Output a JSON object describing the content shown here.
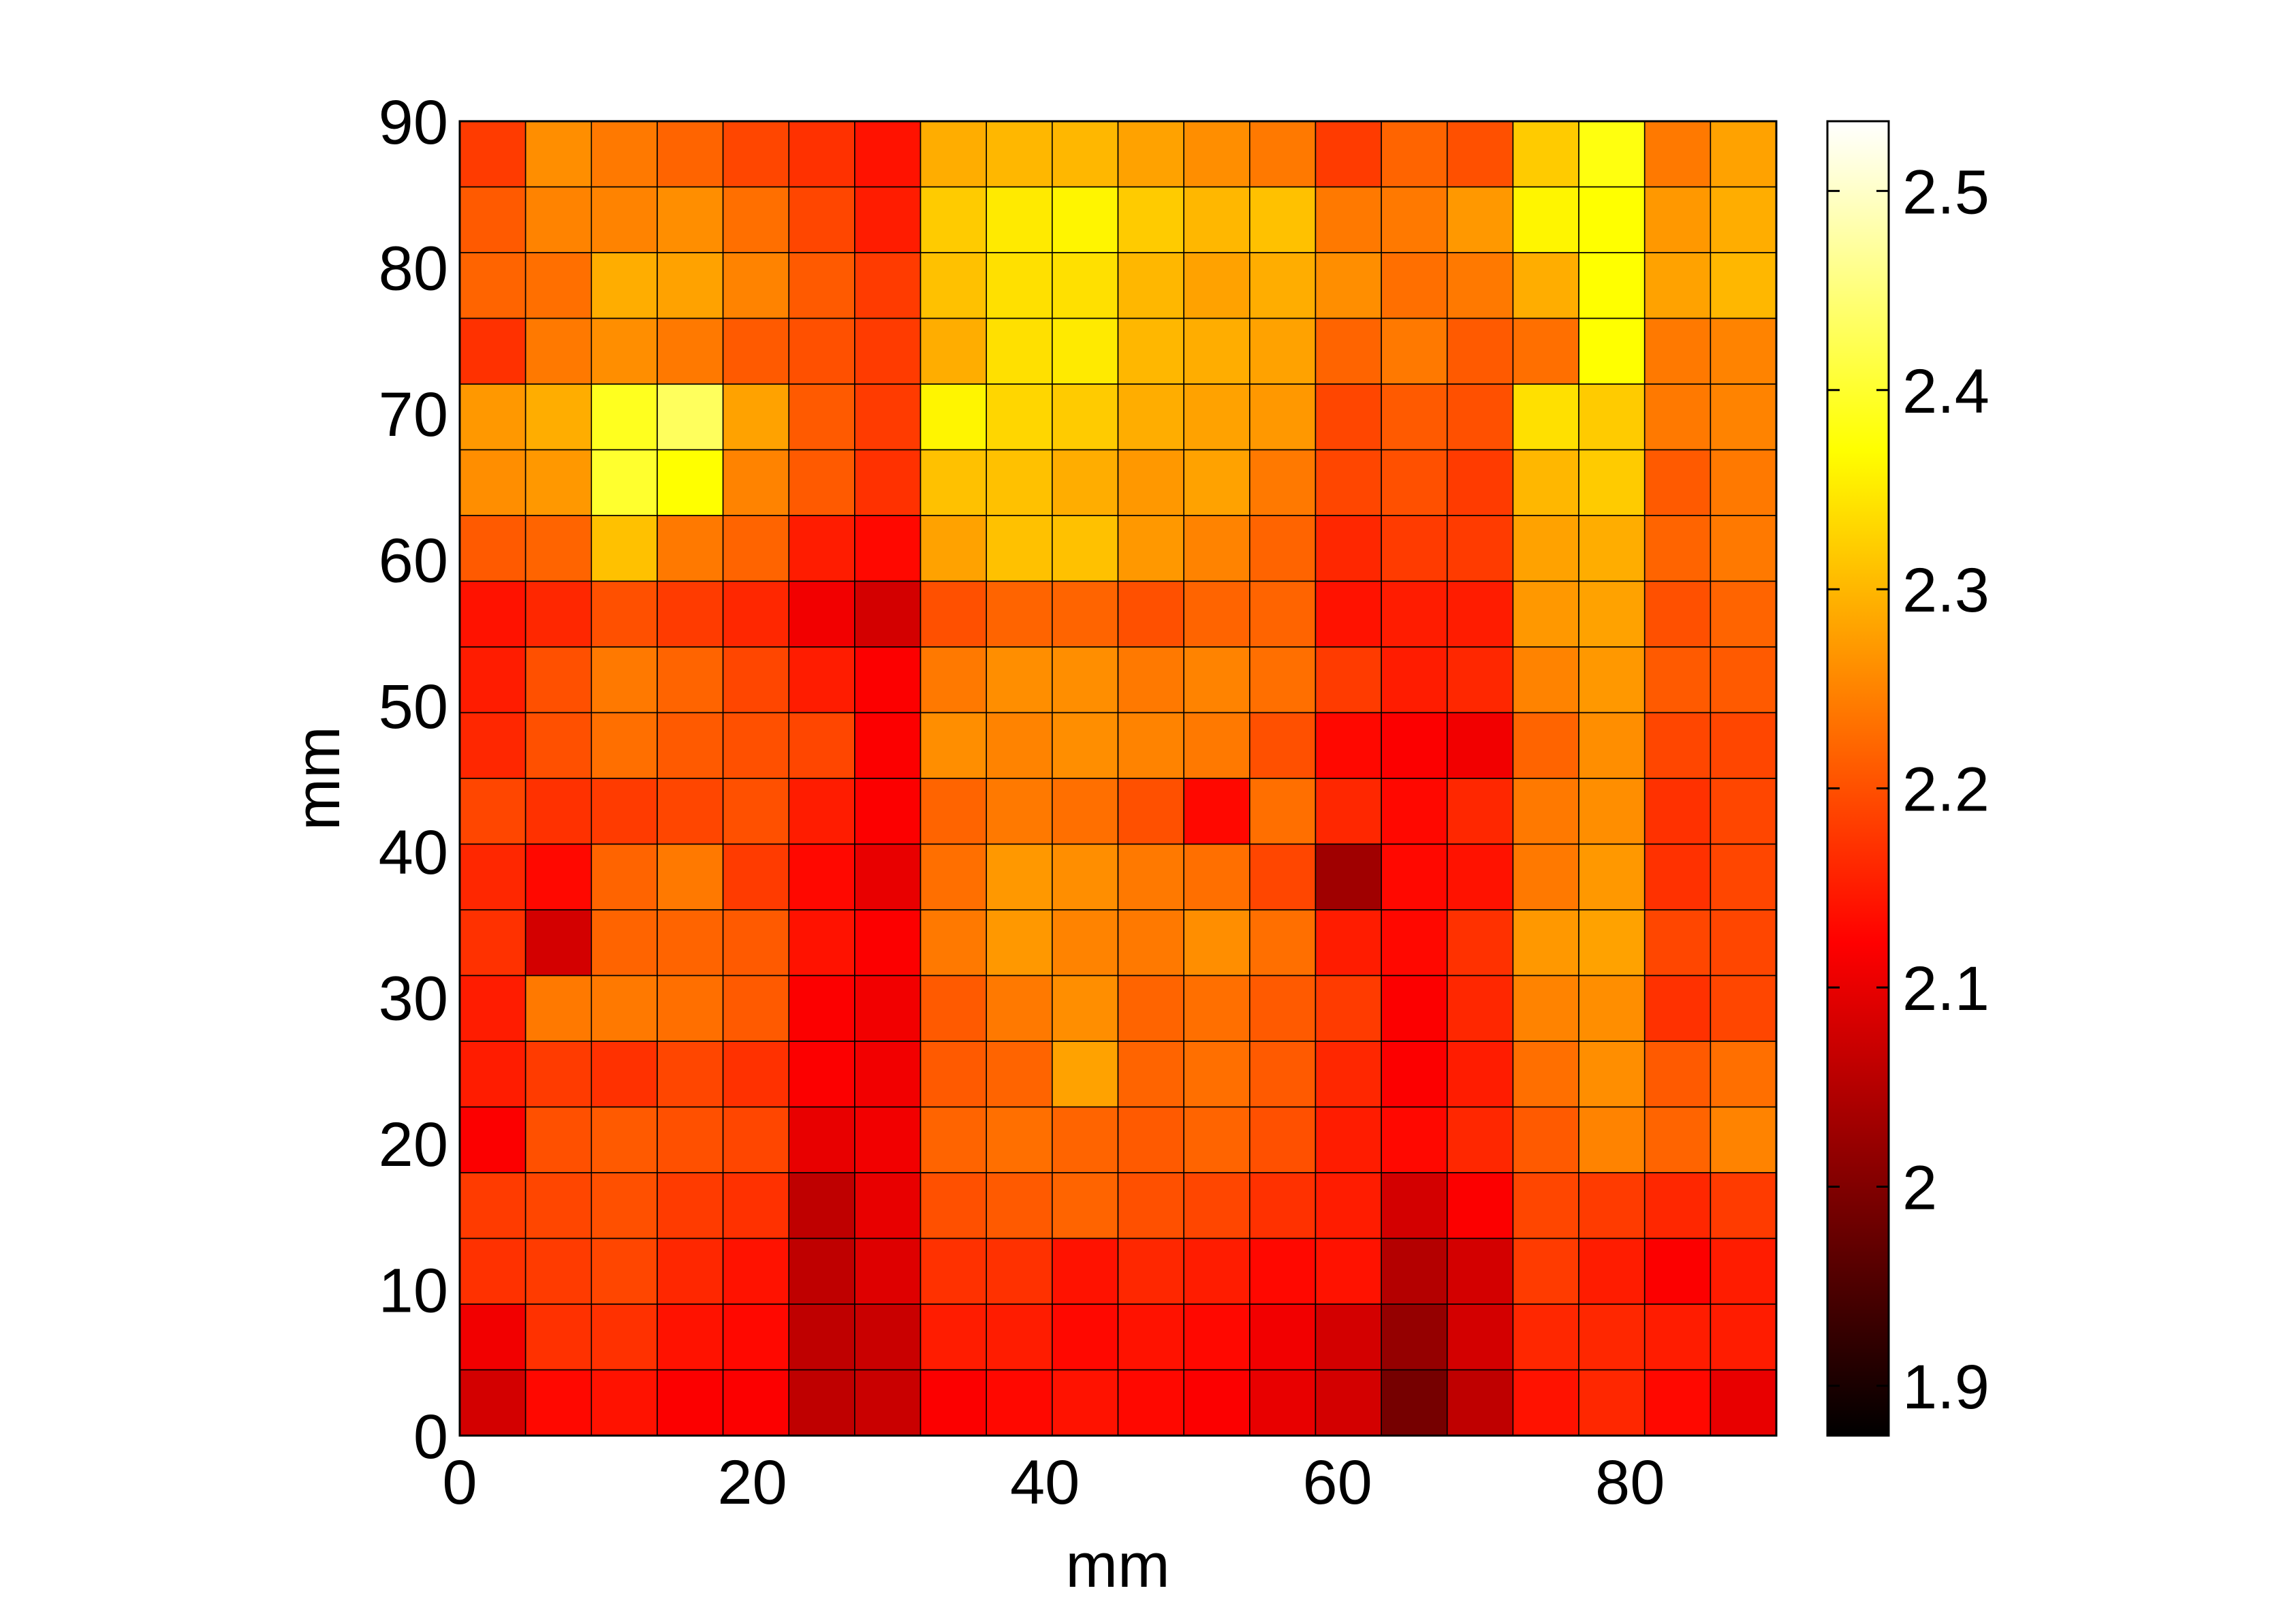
{
  "chart_data": {
    "type": "heatmap",
    "title": "",
    "xlabel": "mm",
    "ylabel": "mm",
    "xlim": [
      0,
      90
    ],
    "ylim": [
      0,
      90
    ],
    "x_ticks": [
      "0",
      "20",
      "40",
      "60",
      "80"
    ],
    "y_ticks": [
      "0",
      "10",
      "20",
      "30",
      "40",
      "50",
      "60",
      "70",
      "80",
      "90"
    ],
    "grid": true,
    "colormap": "hot",
    "clim": [
      1.875,
      2.535
    ],
    "colorbar": {
      "placement": "right",
      "ticks": [
        "1.9",
        "2",
        "2.1",
        "2.2",
        "2.3",
        "2.4",
        "2.5"
      ],
      "tick_values": [
        1.9,
        2.0,
        2.1,
        2.2,
        2.3,
        2.4,
        2.5
      ]
    },
    "cell_size_mm": 4.5,
    "grid_dims": [
      20,
      20
    ],
    "values_rows_top_to_bottom": [
      [
        2.18,
        2.26,
        2.24,
        2.22,
        2.19,
        2.17,
        2.14,
        2.29,
        2.3,
        2.3,
        2.28,
        2.26,
        2.24,
        2.18,
        2.22,
        2.2,
        2.32,
        2.38,
        2.24,
        2.28
      ],
      [
        2.21,
        2.25,
        2.25,
        2.26,
        2.23,
        2.19,
        2.15,
        2.32,
        2.35,
        2.36,
        2.32,
        2.3,
        2.31,
        2.24,
        2.24,
        2.27,
        2.36,
        2.37,
        2.27,
        2.29
      ],
      [
        2.22,
        2.23,
        2.29,
        2.28,
        2.25,
        2.21,
        2.18,
        2.31,
        2.34,
        2.34,
        2.3,
        2.28,
        2.29,
        2.26,
        2.23,
        2.24,
        2.29,
        2.37,
        2.28,
        2.3
      ],
      [
        2.17,
        2.24,
        2.26,
        2.24,
        2.21,
        2.2,
        2.18,
        2.29,
        2.34,
        2.35,
        2.3,
        2.29,
        2.28,
        2.22,
        2.24,
        2.21,
        2.23,
        2.37,
        2.24,
        2.25
      ],
      [
        2.27,
        2.29,
        2.39,
        2.43,
        2.28,
        2.21,
        2.18,
        2.36,
        2.33,
        2.32,
        2.29,
        2.28,
        2.27,
        2.19,
        2.21,
        2.2,
        2.34,
        2.32,
        2.24,
        2.25
      ],
      [
        2.26,
        2.27,
        2.4,
        2.37,
        2.25,
        2.21,
        2.17,
        2.31,
        2.31,
        2.29,
        2.27,
        2.28,
        2.24,
        2.19,
        2.2,
        2.18,
        2.3,
        2.32,
        2.21,
        2.24
      ],
      [
        2.21,
        2.22,
        2.31,
        2.24,
        2.22,
        2.15,
        2.13,
        2.28,
        2.31,
        2.31,
        2.27,
        2.25,
        2.22,
        2.16,
        2.18,
        2.18,
        2.28,
        2.29,
        2.22,
        2.24
      ],
      [
        2.14,
        2.16,
        2.2,
        2.18,
        2.16,
        2.11,
        2.08,
        2.2,
        2.22,
        2.22,
        2.2,
        2.22,
        2.22,
        2.14,
        2.15,
        2.15,
        2.27,
        2.28,
        2.2,
        2.22
      ],
      [
        2.15,
        2.2,
        2.24,
        2.22,
        2.19,
        2.15,
        2.12,
        2.24,
        2.26,
        2.26,
        2.24,
        2.25,
        2.23,
        2.18,
        2.15,
        2.16,
        2.25,
        2.27,
        2.21,
        2.21
      ],
      [
        2.16,
        2.2,
        2.23,
        2.21,
        2.2,
        2.19,
        2.12,
        2.26,
        2.25,
        2.26,
        2.25,
        2.24,
        2.2,
        2.13,
        2.12,
        2.11,
        2.22,
        2.26,
        2.19,
        2.19
      ],
      [
        2.19,
        2.17,
        2.18,
        2.19,
        2.2,
        2.15,
        2.12,
        2.22,
        2.24,
        2.23,
        2.2,
        2.13,
        2.23,
        2.16,
        2.13,
        2.16,
        2.24,
        2.26,
        2.17,
        2.19
      ],
      [
        2.16,
        2.13,
        2.22,
        2.24,
        2.18,
        2.13,
        2.1,
        2.23,
        2.27,
        2.26,
        2.24,
        2.23,
        2.19,
        2.03,
        2.13,
        2.14,
        2.24,
        2.27,
        2.17,
        2.19
      ],
      [
        2.17,
        2.08,
        2.22,
        2.22,
        2.21,
        2.14,
        2.12,
        2.24,
        2.27,
        2.25,
        2.24,
        2.26,
        2.23,
        2.15,
        2.13,
        2.17,
        2.27,
        2.28,
        2.19,
        2.19
      ],
      [
        2.15,
        2.24,
        2.24,
        2.23,
        2.21,
        2.12,
        2.11,
        2.21,
        2.24,
        2.26,
        2.22,
        2.23,
        2.21,
        2.18,
        2.12,
        2.16,
        2.25,
        2.26,
        2.17,
        2.19
      ],
      [
        2.15,
        2.18,
        2.17,
        2.19,
        2.17,
        2.12,
        2.11,
        2.21,
        2.22,
        2.28,
        2.22,
        2.23,
        2.21,
        2.16,
        2.12,
        2.15,
        2.23,
        2.26,
        2.21,
        2.23
      ],
      [
        2.12,
        2.2,
        2.21,
        2.2,
        2.19,
        2.1,
        2.11,
        2.22,
        2.23,
        2.22,
        2.21,
        2.22,
        2.2,
        2.15,
        2.13,
        2.16,
        2.21,
        2.25,
        2.22,
        2.25
      ],
      [
        2.18,
        2.19,
        2.2,
        2.18,
        2.17,
        2.06,
        2.1,
        2.2,
        2.21,
        2.22,
        2.2,
        2.19,
        2.17,
        2.15,
        2.08,
        2.12,
        2.19,
        2.18,
        2.16,
        2.18
      ],
      [
        2.17,
        2.18,
        2.19,
        2.16,
        2.14,
        2.06,
        2.09,
        2.17,
        2.17,
        2.14,
        2.16,
        2.15,
        2.13,
        2.14,
        2.05,
        2.08,
        2.18,
        2.15,
        2.12,
        2.15
      ],
      [
        2.11,
        2.17,
        2.17,
        2.14,
        2.13,
        2.06,
        2.07,
        2.15,
        2.15,
        2.13,
        2.14,
        2.13,
        2.11,
        2.08,
        2.02,
        2.08,
        2.16,
        2.16,
        2.15,
        2.15
      ],
      [
        2.08,
        2.13,
        2.14,
        2.12,
        2.12,
        2.06,
        2.07,
        2.12,
        2.13,
        2.14,
        2.13,
        2.12,
        2.1,
        2.08,
        1.99,
        2.06,
        2.14,
        2.16,
        2.13,
        2.1
      ]
    ]
  }
}
